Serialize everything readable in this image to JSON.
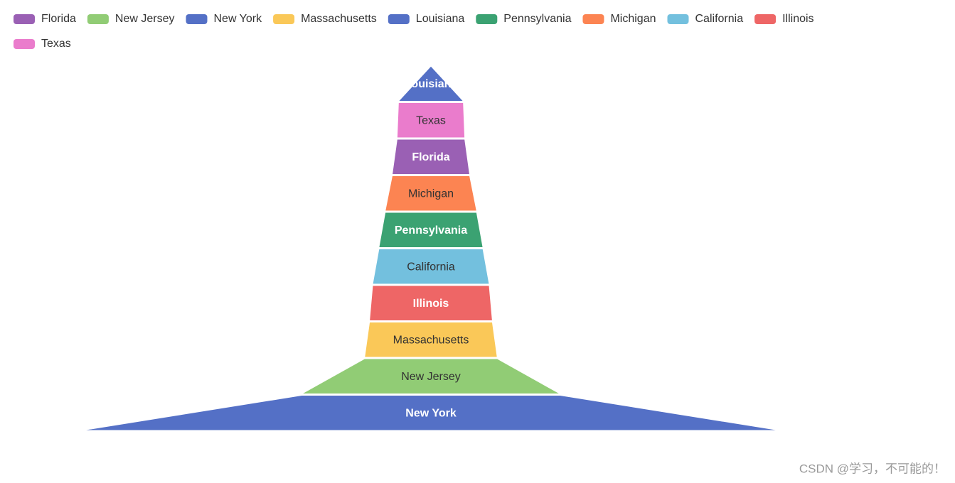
{
  "chart_data": {
    "type": "funnel",
    "sort": "ascending",
    "legend": true,
    "categories": [
      "Florida",
      "New Jersey",
      "New York",
      "Massachusetts",
      "Louisiana",
      "Pennsylvania",
      "Michigan",
      "California",
      "Illinois",
      "Texas"
    ],
    "values": [
      11.1,
      37,
      100,
      19,
      9.3,
      14.9,
      13.1,
      16.7,
      17.6,
      9.7
    ],
    "colors": [
      "#9a60b4",
      "#91cc75",
      "#5470c6",
      "#fac858",
      "#5470c6",
      "#3ba272",
      "#fc8452",
      "#73c0de",
      "#ee6666",
      "#ea7ccc"
    ],
    "watermark": "CSDN @学习，不可能的！"
  }
}
